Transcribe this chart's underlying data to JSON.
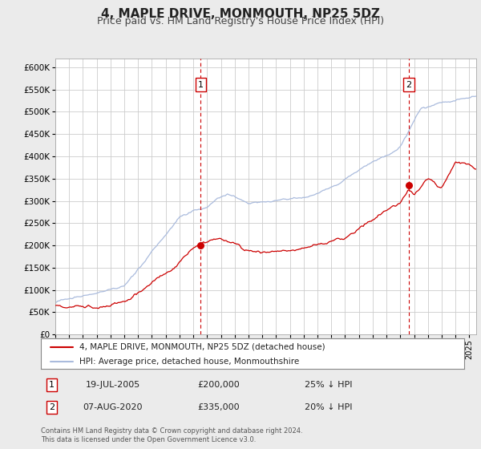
{
  "title": "4, MAPLE DRIVE, MONMOUTH, NP25 5DZ",
  "subtitle": "Price paid vs. HM Land Registry's House Price Index (HPI)",
  "ylim": [
    0,
    620000
  ],
  "yticks": [
    0,
    50000,
    100000,
    150000,
    200000,
    250000,
    300000,
    350000,
    400000,
    450000,
    500000,
    550000,
    600000
  ],
  "xlim_start": 1995.0,
  "xlim_end": 2025.5,
  "background_color": "#ebebeb",
  "plot_bg_color": "#ffffff",
  "grid_color": "#cccccc",
  "hpi_line_color": "#aabbdd",
  "price_line_color": "#cc0000",
  "vline_color": "#cc0000",
  "marker_color": "#cc0000",
  "annotation_box_color": "#cc0000",
  "title_fontsize": 11,
  "subtitle_fontsize": 9,
  "annotation_1": {
    "label": "1",
    "x": 2005.54,
    "price": 200000,
    "date": "19-JUL-2005",
    "amount": "£200,000",
    "pct": "25% ↓ HPI"
  },
  "annotation_2": {
    "label": "2",
    "x": 2020.6,
    "price": 335000,
    "date": "07-AUG-2020",
    "amount": "£335,000",
    "pct": "20% ↓ HPI"
  },
  "legend_line1": "4, MAPLE DRIVE, MONMOUTH, NP25 5DZ (detached house)",
  "legend_line2": "HPI: Average price, detached house, Monmouthshire",
  "footer_line1": "Contains HM Land Registry data © Crown copyright and database right 2024.",
  "footer_line2": "This data is licensed under the Open Government Licence v3.0."
}
